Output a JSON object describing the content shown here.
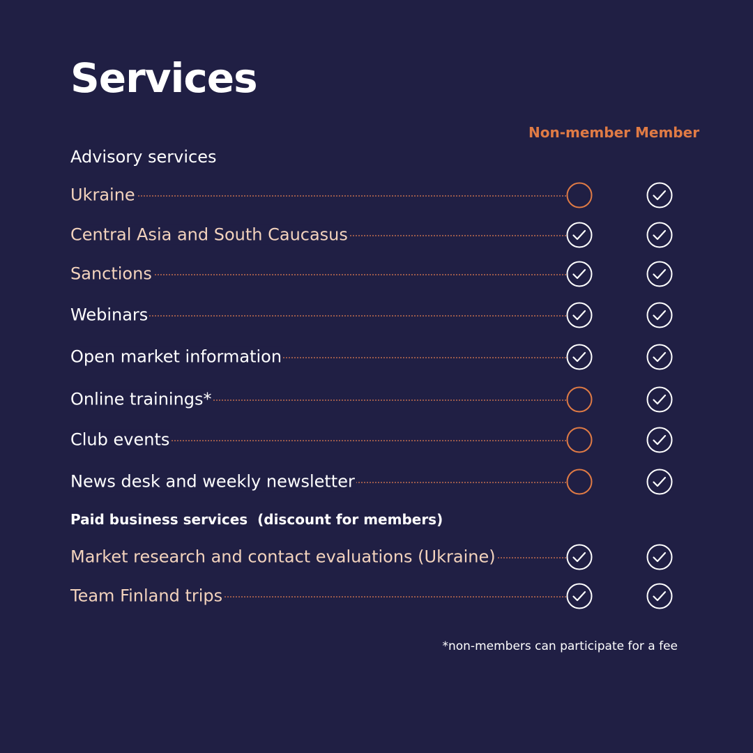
{
  "title": "Services",
  "columns": {
    "non_member": "Non-member",
    "member": "Member"
  },
  "colors": {
    "background": "#201f44",
    "accent": "#e07b45",
    "highlight_text": "#f3d3bd",
    "text": "#ffffff"
  },
  "sections": [
    {
      "heading": "Advisory services"
    },
    {
      "heading": "Paid business services  (discount for members)"
    }
  ],
  "rows": [
    {
      "label": "Ukraine",
      "highlight": true,
      "non_member": "empty-circle-icon",
      "member": "check-circle-icon"
    },
    {
      "label": "Central Asia and South Caucasus",
      "highlight": true,
      "non_member": "check-circle-icon",
      "member": "check-circle-icon"
    },
    {
      "label": "Sanctions",
      "highlight": true,
      "non_member": "check-circle-icon",
      "member": "check-circle-icon"
    },
    {
      "label": "Webinars",
      "highlight": false,
      "non_member": "check-circle-icon",
      "member": "check-circle-icon"
    },
    {
      "label": "Open market information",
      "highlight": false,
      "non_member": "check-circle-icon",
      "member": "check-circle-icon"
    },
    {
      "label": "Online trainings*",
      "highlight": false,
      "non_member": "empty-circle-icon",
      "member": "check-circle-icon"
    },
    {
      "label": "Club events",
      "highlight": false,
      "non_member": "empty-circle-icon",
      "member": "check-circle-icon"
    },
    {
      "label": "News desk and weekly newsletter",
      "highlight": false,
      "non_member": "empty-circle-icon",
      "member": "check-circle-icon"
    },
    {
      "label": "Market research and contact evaluations (Ukraine)",
      "highlight": true,
      "non_member": "check-circle-icon",
      "member": "check-circle-icon"
    },
    {
      "label": "Team Finland trips",
      "highlight": true,
      "non_member": "check-circle-icon",
      "member": "check-circle-icon"
    }
  ],
  "footnote": "*non-members can participate for a fee"
}
